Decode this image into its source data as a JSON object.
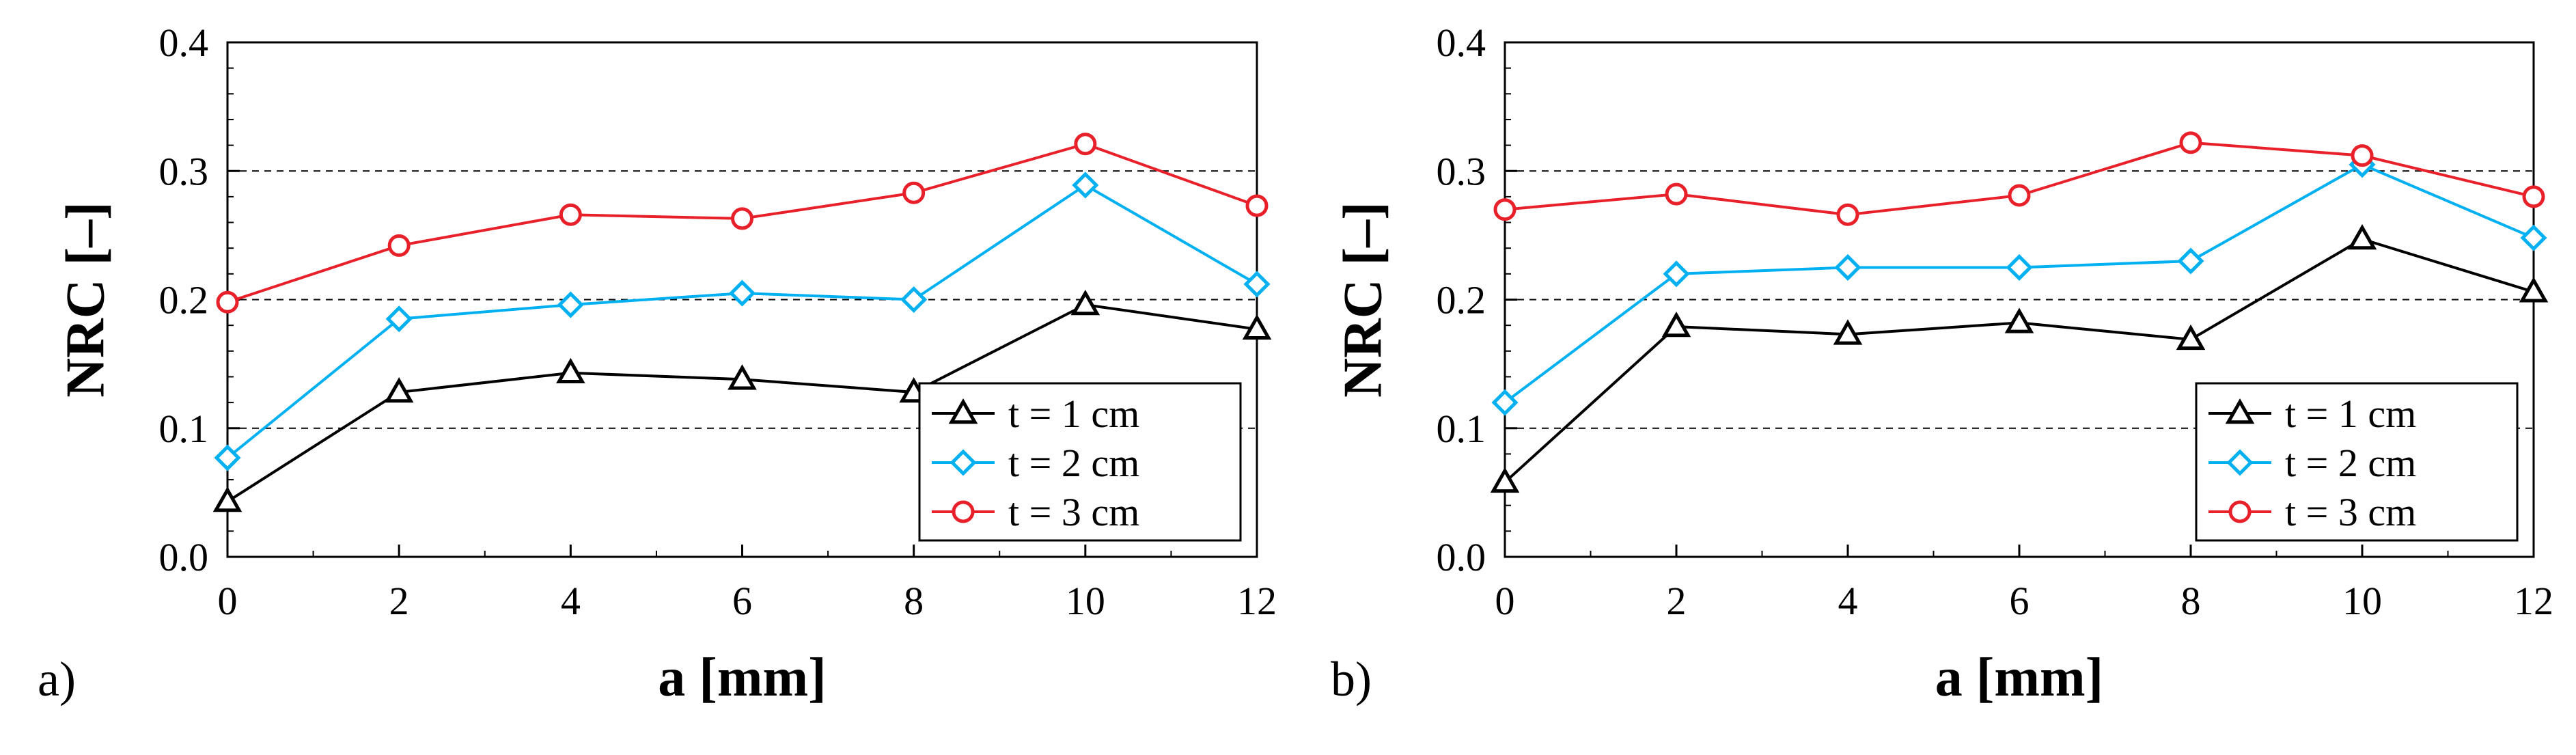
{
  "figure": {
    "panels": [
      {
        "panel_label": "a)"
      },
      {
        "panel_label": "b)"
      }
    ]
  },
  "chart_data": [
    {
      "type": "line",
      "panel_label": "a)",
      "xlabel": "a [mm]",
      "ylabel": "NRC [–]",
      "x": [
        0,
        2,
        4,
        6,
        8,
        10,
        12
      ],
      "xlim": [
        0,
        12
      ],
      "ylim": [
        0.0,
        0.4
      ],
      "xticks": [
        "0",
        "2",
        "4",
        "6",
        "8",
        "10",
        "12"
      ],
      "yticks": [
        "0.0",
        "0.1",
        "0.2",
        "0.3",
        "0.4"
      ],
      "grid": "horizontal dashed",
      "legend_position": "bottom-right",
      "series": [
        {
          "name": "t = 1 cm",
          "color": "#000000",
          "marker": "triangle",
          "values": [
            0.043,
            0.128,
            0.143,
            0.138,
            0.128,
            0.196,
            0.177
          ]
        },
        {
          "name": "t = 2 cm",
          "color": "#00b0f0",
          "marker": "diamond",
          "values": [
            0.077,
            0.185,
            0.196,
            0.205,
            0.2,
            0.289,
            0.212
          ]
        },
        {
          "name": "t = 3 cm",
          "color": "#e8202a",
          "marker": "circle",
          "values": [
            0.198,
            0.242,
            0.266,
            0.263,
            0.283,
            0.321,
            0.273
          ]
        }
      ]
    },
    {
      "type": "line",
      "panel_label": "b)",
      "xlabel": "a [mm]",
      "ylabel": "NRC [–]",
      "x": [
        0,
        2,
        4,
        6,
        8,
        10,
        12
      ],
      "xlim": [
        0,
        12
      ],
      "ylim": [
        0.0,
        0.4
      ],
      "xticks": [
        "0",
        "2",
        "4",
        "6",
        "8",
        "10",
        "12"
      ],
      "yticks": [
        "0.0",
        "0.1",
        "0.2",
        "0.3",
        "0.4"
      ],
      "grid": "horizontal dashed",
      "legend_position": "bottom-right",
      "series": [
        {
          "name": "t = 1 cm",
          "color": "#000000",
          "marker": "triangle",
          "values": [
            0.058,
            0.179,
            0.173,
            0.182,
            0.169,
            0.247,
            0.206
          ]
        },
        {
          "name": "t = 2 cm",
          "color": "#00b0f0",
          "marker": "diamond",
          "values": [
            0.12,
            0.22,
            0.225,
            0.225,
            0.23,
            0.305,
            0.248
          ]
        },
        {
          "name": "t = 3 cm",
          "color": "#e8202a",
          "marker": "circle",
          "values": [
            0.27,
            0.282,
            0.266,
            0.281,
            0.322,
            0.312,
            0.28
          ]
        }
      ]
    }
  ]
}
